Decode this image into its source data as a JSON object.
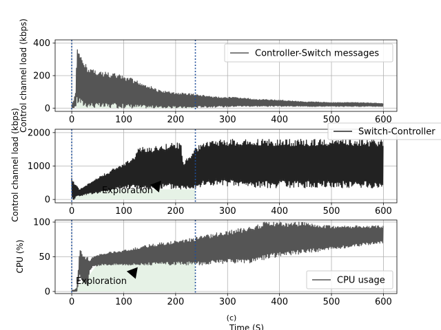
{
  "chart_data": [
    {
      "type": "line",
      "ylabel": "Control channel load (kbps)",
      "xlabel": "",
      "xlim": [
        -32,
        626
      ],
      "ylim": [
        -20,
        420
      ],
      "xticks": [
        0,
        100,
        200,
        300,
        400,
        500,
        600
      ],
      "yticks": [
        0,
        200,
        400
      ],
      "grid": true,
      "legend_position": "top-right",
      "series": [
        {
          "name": "Controller-Switch messages",
          "color": "#555555",
          "envelope": {
            "x": [
              0,
              3,
              8,
              10,
              15,
              20,
              30,
              50,
              80,
              110,
              140,
              170,
              200,
              230,
              250,
              280,
              320,
              360,
              400,
              450,
              500,
              550,
              600
            ],
            "high": [
              20,
              40,
              110,
              390,
              330,
              300,
              260,
              230,
              215,
              190,
              150,
              110,
              95,
              90,
              80,
              70,
              65,
              55,
              50,
              40,
              35,
              35,
              30
            ],
            "low": [
              0,
              0,
              10,
              20,
              30,
              10,
              5,
              0,
              0,
              0,
              0,
              0,
              0,
              0,
              5,
              5,
              10,
              10,
              10,
              10,
              10,
              10,
              10
            ]
          }
        }
      ],
      "vlines": [
        0,
        238
      ],
      "shaded_region": {
        "color": "#e6f2e6",
        "x": [
          0,
          8,
          12,
          20,
          50,
          100,
          150,
          200,
          238
        ],
        "high": [
          0,
          0,
          200,
          180,
          150,
          110,
          80,
          40,
          10
        ]
      }
    },
    {
      "type": "line",
      "ylabel": "Control channel load (kbps)",
      "xlabel": "",
      "xlim": [
        -32,
        626
      ],
      "ylim": [
        -100,
        2100
      ],
      "xticks": [
        0,
        100,
        200,
        300,
        400,
        500,
        600
      ],
      "yticks": [
        0,
        1000,
        2000
      ],
      "grid": true,
      "legend_position": "outside-right",
      "series": [
        {
          "name": "Switch-Controller",
          "color": "#222222",
          "envelope": {
            "x": [
              0,
              5,
              10,
              15,
              30,
              60,
              90,
              120,
              125,
              160,
              190,
              210,
              215,
              240,
              260,
              300,
              350,
              400,
              450,
              500,
              550,
              600
            ],
            "high": [
              650,
              500,
              400,
              300,
              450,
              750,
              1000,
              1250,
              1550,
              1600,
              1700,
              1700,
              1100,
              1600,
              1750,
              1800,
              1800,
              1800,
              1800,
              1800,
              1800,
              1800
            ],
            "low": [
              0,
              0,
              100,
              100,
              150,
              200,
              300,
              350,
              250,
              300,
              300,
              300,
              300,
              350,
              400,
              400,
              350,
              350,
              350,
              350,
              350,
              300
            ]
          }
        }
      ],
      "vlines": [
        0,
        238
      ],
      "shaded_region": {
        "color": "#e6f2e6",
        "x": [
          0,
          8,
          20,
          50,
          100,
          150,
          200,
          238
        ],
        "high": [
          0,
          150,
          250,
          300,
          300,
          300,
          300,
          300
        ]
      },
      "annotations": [
        {
          "text": "Exploration",
          "x": 58,
          "y": 200,
          "arrow_to": [
            172,
            560
          ]
        }
      ]
    },
    {
      "type": "line",
      "ylabel": "CPU (%)",
      "xlabel": "Time (S)",
      "panel_label": "(c)",
      "xlim": [
        -32,
        626
      ],
      "ylim": [
        -3,
        103
      ],
      "xticks": [
        0,
        100,
        200,
        300,
        400,
        500,
        600
      ],
      "yticks": [
        0,
        50,
        100
      ],
      "grid": true,
      "legend_position": "lower-right",
      "series": [
        {
          "name": "CPU usage",
          "color": "#555555",
          "envelope": {
            "x": [
              0,
              5,
              10,
              15,
              20,
              25,
              30,
              35,
              40,
              60,
              100,
              150,
              200,
              250,
              300,
              350,
              370,
              400,
              450,
              500,
              550,
              600
            ],
            "high": [
              2,
              2,
              5,
              60,
              58,
              50,
              50,
              45,
              50,
              55,
              60,
              68,
              73,
              80,
              88,
              95,
              100,
              100,
              100,
              95,
              95,
              95
            ],
            "low": [
              0,
              0,
              0,
              20,
              15,
              10,
              5,
              30,
              35,
              38,
              38,
              38,
              38,
              38,
              40,
              40,
              45,
              50,
              55,
              60,
              65,
              70
            ]
          }
        }
      ],
      "vlines": [
        0,
        238
      ],
      "shaded_region": {
        "color": "#e6f2e6",
        "x": [
          0,
          35,
          50,
          100,
          150,
          200,
          238
        ],
        "high": [
          0,
          25,
          40,
          45,
          50,
          55,
          60
        ]
      },
      "annotations": [
        {
          "text": "Exploration",
          "x": 10,
          "y": 12,
          "arrow_to": [
            127,
            35
          ]
        }
      ]
    }
  ]
}
